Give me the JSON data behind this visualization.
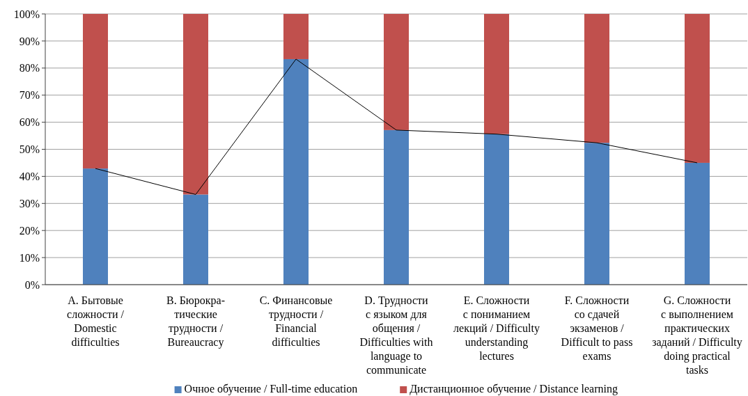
{
  "chart_data": {
    "type": "bar",
    "stacked": true,
    "categories": [
      "A. Бытовые\nсложности /\nDomestic\ndifficulties",
      "B. Бюрокра-\nтические\nтрудности /\nBureaucracy",
      "C. Финансовые\nтрудности /\nFinancial\ndifficulties",
      "D. Трудности\nс языком для\nобщения /\nDifficulties with\nlanguage to\ncommunicate",
      "E. Сложности\nс пониманием\nлекций / Difficulty\nunderstanding\nlectures",
      "F. Сложности\nсо сдачей\nэкзаменов /\nDifficult to pass\nexams",
      "G. Сложности\nс выполнением\nпрактических\nзаданий / Difficulty\ndoing practical\ntasks"
    ],
    "series": [
      {
        "name": "Очное обучение / Full-time education",
        "color": "#4f81bd",
        "values": [
          42.9,
          33.3,
          83.3,
          57.1,
          55.6,
          52.4,
          45.0
        ]
      },
      {
        "name": "Дистанционное обучение / Distance learning",
        "color": "#c0504d",
        "values": [
          57.1,
          66.7,
          16.7,
          42.9,
          44.4,
          47.6,
          55.0
        ]
      },
      {
        "type": "line",
        "color": "#000000",
        "values": [
          42.9,
          33.3,
          83.3,
          57.1,
          55.6,
          52.4,
          45.0
        ]
      }
    ],
    "ylim": [
      0,
      100
    ],
    "yticks": [
      {
        "value": 0,
        "label": "0%"
      },
      {
        "value": 10,
        "label": "10%"
      },
      {
        "value": 20,
        "label": "20%"
      },
      {
        "value": 30,
        "label": "30%"
      },
      {
        "value": 40,
        "label": "40%"
      },
      {
        "value": 50,
        "label": "50%"
      },
      {
        "value": 60,
        "label": "60%"
      },
      {
        "value": 70,
        "label": "70%"
      },
      {
        "value": 80,
        "label": "80%"
      },
      {
        "value": 90,
        "label": "90%"
      },
      {
        "value": 100,
        "label": "100%"
      }
    ],
    "grid": "y",
    "legend": "bottom",
    "marker": "none"
  }
}
